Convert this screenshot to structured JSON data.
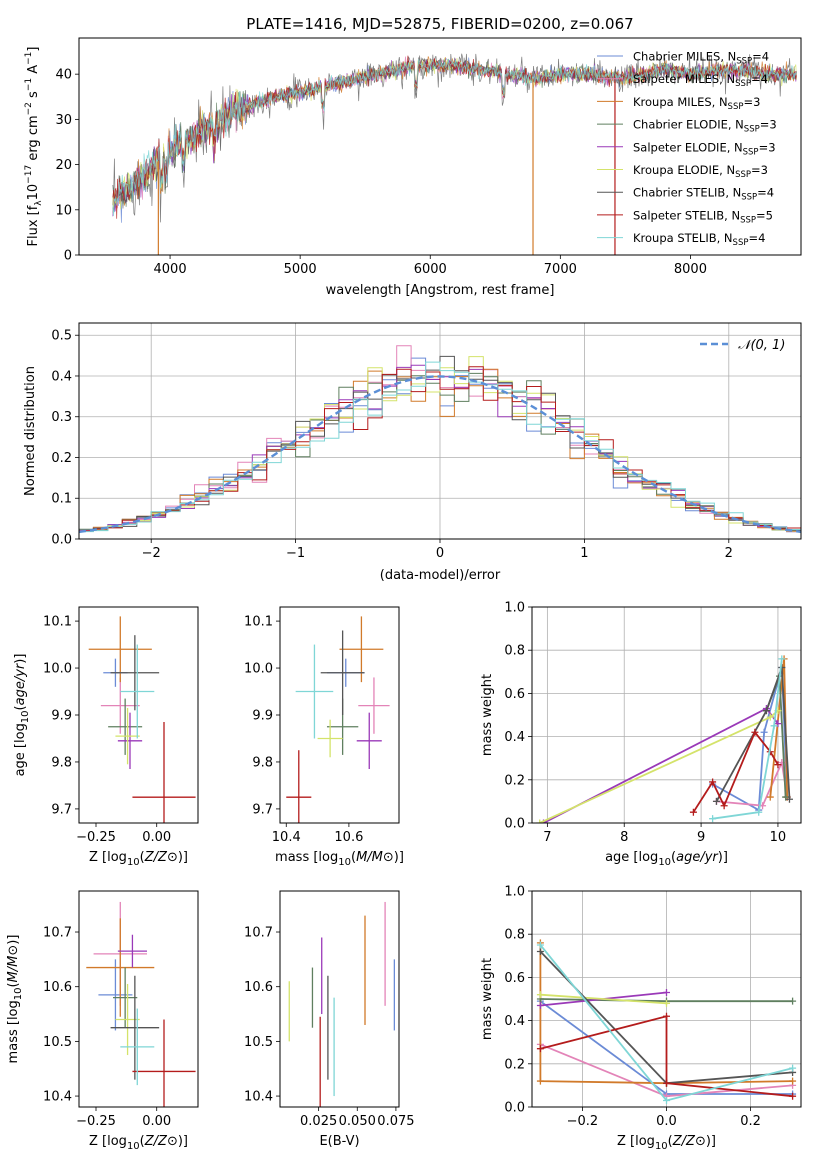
{
  "figure": {
    "title": "PLATE=1416, MJD=52875, FIBERID=0200, z=0.067"
  },
  "models": [
    {
      "name": "Chabrier MILES",
      "nssp": "4",
      "color": "#6b8bd6"
    },
    {
      "name": "Salpeter MILES",
      "nssp": "4",
      "color": "#e384b8"
    },
    {
      "name": "Kroupa MILES",
      "nssp": "3",
      "color": "#d17a2a"
    },
    {
      "name": "Chabrier ELODIE",
      "nssp": "3",
      "color": "#5f7f5f"
    },
    {
      "name": "Salpeter ELODIE",
      "nssp": "3",
      "color": "#9a39b8"
    },
    {
      "name": "Kroupa ELODIE",
      "nssp": "3",
      "color": "#d4e36a"
    },
    {
      "name": "Chabrier STELIB",
      "nssp": "4",
      "color": "#555555"
    },
    {
      "name": "Salpeter STELIB",
      "nssp": "5",
      "color": "#b41c1c"
    },
    {
      "name": "Kroupa STELIB",
      "nssp": "4",
      "color": "#7fd6d6"
    }
  ],
  "nssp_label": "N",
  "nssp_sub": "SSP",
  "chart_data": [
    {
      "id": "spectrum",
      "type": "line",
      "xlabel": "wavelength [Angstrom, rest frame]",
      "ylabel_parts": [
        "Flux [f",
        "λ",
        "10",
        "−17",
        " erg cm",
        "−2",
        " s",
        "−1",
        " A",
        "−1",
        "]"
      ],
      "xlim": [
        3300,
        8850
      ],
      "ylim": [
        0,
        48
      ],
      "xticks": [
        4000,
        5000,
        6000,
        7000,
        8000
      ],
      "yticks": [
        0,
        10,
        20,
        30,
        40
      ],
      "continuum": [
        [
          3560,
          12
        ],
        [
          3700,
          15
        ],
        [
          3850,
          19
        ],
        [
          3950,
          22
        ],
        [
          4100,
          25
        ],
        [
          4300,
          28
        ],
        [
          4500,
          32
        ],
        [
          4800,
          35
        ],
        [
          5000,
          36
        ],
        [
          5300,
          38
        ],
        [
          5600,
          40
        ],
        [
          5900,
          42
        ],
        [
          6100,
          42
        ],
        [
          6400,
          41
        ],
        [
          6600,
          40
        ],
        [
          6800,
          39
        ],
        [
          7000,
          40
        ],
        [
          7200,
          40
        ],
        [
          7500,
          39
        ],
        [
          7800,
          41
        ],
        [
          8000,
          40
        ],
        [
          8300,
          41
        ],
        [
          8600,
          40
        ],
        [
          8820,
          40
        ]
      ]
    },
    {
      "id": "residuals",
      "type": "histogram",
      "xlabel": "(data-model)/error",
      "ylabel": "Normed distribution",
      "xlim": [
        -2.5,
        2.5
      ],
      "ylim": [
        0,
        0.53
      ],
      "xticks": [
        -2,
        -1,
        0,
        1,
        2
      ],
      "yticks": [
        0.0,
        0.1,
        0.2,
        0.3,
        0.4,
        0.5
      ],
      "reference_label": "𝒩(0, 1)",
      "reference_color": "#5b8fd6",
      "bin_width": 0.1
    },
    {
      "id": "age_vs_Z",
      "type": "scatter",
      "xlabel": "Z [log10(Z/Z⊙)]",
      "ylabel": "age  [log10(age/yr)]",
      "xlim": [
        -0.32,
        0.17
      ],
      "ylim": [
        9.67,
        10.13
      ],
      "xticks": [
        -0.25,
        0.0
      ],
      "yticks": [
        9.7,
        9.8,
        9.9,
        10.0,
        10.1
      ],
      "points": [
        {
          "x": -0.17,
          "y": 9.99,
          "xerr": 0.05,
          "yerr": 0.03
        },
        {
          "x": -0.15,
          "y": 9.92,
          "xerr": 0.08,
          "yerr": 0.06
        },
        {
          "x": -0.15,
          "y": 10.04,
          "xerr": 0.13,
          "yerr": 0.07
        },
        {
          "x": -0.13,
          "y": 9.875,
          "xerr": 0.07,
          "yerr": 0.06
        },
        {
          "x": -0.11,
          "y": 9.845,
          "xerr": 0.05,
          "yerr": 0.06
        },
        {
          "x": -0.12,
          "y": 9.855,
          "xerr": 0.05,
          "yerr": 0.06
        },
        {
          "x": -0.09,
          "y": 9.99,
          "xerr": 0.1,
          "yerr": 0.08
        },
        {
          "x": 0.03,
          "y": 9.725,
          "xerr": 0.13,
          "yerr": 0.16
        },
        {
          "x": -0.08,
          "y": 9.95,
          "xerr": 0.07,
          "yerr": 0.1
        }
      ]
    },
    {
      "id": "age_vs_mass",
      "type": "scatter",
      "xlabel": "mass [log10(M/M⊙)]",
      "ylabel": "",
      "xlim": [
        10.38,
        10.76
      ],
      "ylim": [
        9.67,
        10.13
      ],
      "xticks": [
        10.4,
        10.6
      ],
      "yticks": [
        9.7,
        9.8,
        9.9,
        10.0,
        10.1
      ],
      "points": [
        {
          "x": 10.59,
          "y": 9.99,
          "xerr": 0.06,
          "yerr": 0.03
        },
        {
          "x": 10.68,
          "y": 9.92,
          "xerr": 0.05,
          "yerr": 0.06
        },
        {
          "x": 10.64,
          "y": 10.04,
          "xerr": 0.07,
          "yerr": 0.07
        },
        {
          "x": 10.58,
          "y": 9.875,
          "xerr": 0.05,
          "yerr": 0.06
        },
        {
          "x": 10.665,
          "y": 9.845,
          "xerr": 0.04,
          "yerr": 0.06
        },
        {
          "x": 10.54,
          "y": 9.85,
          "xerr": 0.04,
          "yerr": 0.04
        },
        {
          "x": 10.58,
          "y": 9.99,
          "xerr": 0.07,
          "yerr": 0.09
        },
        {
          "x": 10.44,
          "y": 9.725,
          "xerr": 0.04,
          "yerr": 0.1
        },
        {
          "x": 10.49,
          "y": 9.95,
          "xerr": 0.06,
          "yerr": 0.1
        }
      ]
    },
    {
      "id": "weight_vs_age",
      "type": "line",
      "xlabel": "age  [log10(age/yr)]",
      "ylabel": "mass weight",
      "xlim": [
        6.8,
        10.3
      ],
      "ylim": [
        0.0,
        1.0
      ],
      "xticks": [
        7,
        8,
        9,
        10
      ],
      "yticks": [
        0.0,
        0.2,
        0.4,
        0.6,
        0.8,
        1.0
      ],
      "series": [
        {
          "model": 0,
          "x": [
            9.15,
            9.75,
            9.82,
            10.05,
            10.12
          ],
          "y": [
            0.18,
            0.06,
            0.42,
            0.72,
            0.12
          ]
        },
        {
          "model": 1,
          "x": [
            9.2,
            9.8,
            10.05,
            10.12
          ],
          "y": [
            0.1,
            0.08,
            0.28,
            0.12
          ]
        },
        {
          "model": 2,
          "x": [
            9.9,
            10.08,
            10.12
          ],
          "y": [
            0.12,
            0.76,
            0.12
          ]
        },
        {
          "model": 3,
          "x": [
            9.85,
            10.02,
            10.1
          ],
          "y": [
            0.52,
            0.68,
            0.12
          ]
        },
        {
          "model": 4,
          "x": [
            6.95,
            9.85,
            10.0
          ],
          "y": [
            0.0,
            0.53,
            0.46
          ]
        },
        {
          "model": 5,
          "x": [
            6.9,
            9.9,
            10.0
          ],
          "y": [
            0.0,
            0.49,
            0.52
          ]
        },
        {
          "model": 6,
          "x": [
            9.2,
            9.85,
            10.05,
            10.15
          ],
          "y": [
            0.1,
            0.52,
            0.72,
            0.11
          ]
        },
        {
          "model": 7,
          "x": [
            8.9,
            9.15,
            9.3,
            9.7,
            9.9,
            10.0
          ],
          "y": [
            0.05,
            0.19,
            0.08,
            0.42,
            0.33,
            0.27
          ]
        },
        {
          "model": 8,
          "x": [
            9.15,
            9.75,
            9.95,
            10.05
          ],
          "y": [
            0.02,
            0.05,
            0.45,
            0.76
          ]
        }
      ]
    },
    {
      "id": "mass_vs_Z",
      "type": "scatter",
      "xlabel": "Z [log10(Z/Z⊙)]",
      "ylabel": "mass [log10(M/M⊙)]",
      "xlim": [
        -0.32,
        0.17
      ],
      "ylim": [
        10.38,
        10.775
      ],
      "xticks": [
        -0.25,
        0.0
      ],
      "yticks": [
        10.4,
        10.5,
        10.6,
        10.7
      ],
      "points": [
        {
          "x": -0.17,
          "y": 10.585,
          "xerr": 0.07,
          "yerr": 0.065
        },
        {
          "x": -0.15,
          "y": 10.66,
          "xerr": 0.11,
          "yerr": 0.095
        },
        {
          "x": -0.15,
          "y": 10.635,
          "xerr": 0.14,
          "yerr": 0.09
        },
        {
          "x": -0.13,
          "y": 10.58,
          "xerr": 0.05,
          "yerr": 0.055
        },
        {
          "x": -0.1,
          "y": 10.665,
          "xerr": 0.06,
          "yerr": 0.03
        },
        {
          "x": -0.12,
          "y": 10.54,
          "xerr": 0.05,
          "yerr": 0.065
        },
        {
          "x": -0.09,
          "y": 10.525,
          "xerr": 0.1,
          "yerr": 0.095
        },
        {
          "x": 0.03,
          "y": 10.445,
          "xerr": 0.13,
          "yerr": 0.095
        },
        {
          "x": -0.08,
          "y": 10.49,
          "xerr": 0.07,
          "yerr": 0.07
        }
      ]
    },
    {
      "id": "mass_vs_ebv",
      "type": "scatter",
      "xlabel": "E(B-V)",
      "ylabel": "",
      "xlim": [
        0.0,
        0.077
      ],
      "ylim": [
        10.38,
        10.775
      ],
      "xticks": [
        0.025,
        0.05,
        0.075
      ],
      "yticks": [
        10.4,
        10.5,
        10.6,
        10.7
      ],
      "points": [
        {
          "x": 0.074,
          "y": 10.585,
          "yerr": 0.065
        },
        {
          "x": 0.068,
          "y": 10.66,
          "yerr": 0.095
        },
        {
          "x": 0.055,
          "y": 10.63,
          "yerr": 0.1
        },
        {
          "x": 0.021,
          "y": 10.58,
          "yerr": 0.055
        },
        {
          "x": 0.027,
          "y": 10.62,
          "yerr": 0.07
        },
        {
          "x": 0.006,
          "y": 10.555,
          "yerr": 0.055
        },
        {
          "x": 0.031,
          "y": 10.525,
          "yerr": 0.095
        },
        {
          "x": 0.026,
          "y": 10.455,
          "yerr": 0.09
        },
        {
          "x": 0.035,
          "y": 10.49,
          "yerr": 0.09
        }
      ]
    },
    {
      "id": "weight_vs_Z",
      "type": "line",
      "xlabel": "Z [log10(Z/Z⊙)]",
      "ylabel": "mass weight",
      "xlim": [
        -0.32,
        0.32
      ],
      "ylim": [
        0.0,
        1.0
      ],
      "xticks": [
        -0.2,
        0.0,
        0.2
      ],
      "yticks": [
        0.0,
        0.2,
        0.4,
        0.6,
        0.8,
        1.0
      ],
      "series": [
        {
          "model": 0,
          "x": [
            -0.3,
            0.0,
            0.3
          ],
          "y": [
            0.49,
            0.06,
            0.06
          ]
        },
        {
          "model": 1,
          "x": [
            -0.3,
            0.0,
            0.3
          ],
          "y": [
            0.29,
            0.05,
            0.1
          ]
        },
        {
          "model": 2,
          "x": [
            -0.3,
            -0.3,
            0.0,
            0.3
          ],
          "y": [
            0.76,
            0.12,
            0.11,
            0.12
          ]
        },
        {
          "model": 3,
          "x": [
            -0.3,
            0.0,
            0.3
          ],
          "y": [
            0.5,
            0.49,
            0.49
          ]
        },
        {
          "model": 4,
          "x": [
            -0.3,
            0.0
          ],
          "y": [
            0.47,
            0.53
          ]
        },
        {
          "model": 5,
          "x": [
            -0.3,
            0.0
          ],
          "y": [
            0.52,
            0.48
          ]
        },
        {
          "model": 6,
          "x": [
            -0.3,
            0.0,
            0.3
          ],
          "y": [
            0.72,
            0.11,
            0.16
          ]
        },
        {
          "model": 7,
          "x": [
            -0.3,
            0.0,
            0.0,
            0.3
          ],
          "y": [
            0.27,
            0.42,
            0.11,
            0.05
          ]
        },
        {
          "model": 8,
          "x": [
            -0.3,
            0.0,
            0.3
          ],
          "y": [
            0.75,
            0.03,
            0.18
          ]
        }
      ]
    }
  ]
}
